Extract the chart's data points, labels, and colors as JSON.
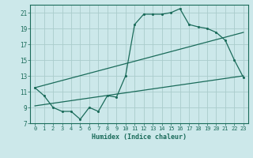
{
  "xlabel": "Humidex (Indice chaleur)",
  "bg_color": "#cce8ea",
  "grid_color": "#aacccc",
  "line_color": "#1a6b5a",
  "xlim": [
    -0.5,
    23.5
  ],
  "ylim": [
    7,
    22
  ],
  "xticks": [
    0,
    1,
    2,
    3,
    4,
    5,
    6,
    7,
    8,
    9,
    10,
    11,
    12,
    13,
    14,
    15,
    16,
    17,
    18,
    19,
    20,
    21,
    22,
    23
  ],
  "yticks": [
    7,
    9,
    11,
    13,
    15,
    17,
    19,
    21
  ],
  "line1_x": [
    0,
    1,
    2,
    3,
    4,
    5,
    6,
    7,
    8,
    9,
    10,
    11,
    12,
    13,
    14,
    15,
    16,
    17,
    18,
    19,
    20,
    21,
    22,
    23
  ],
  "line1_y": [
    11.5,
    10.5,
    9.0,
    8.5,
    8.5,
    7.5,
    9.0,
    8.5,
    10.5,
    10.3,
    13.0,
    19.5,
    20.8,
    20.8,
    20.8,
    21.0,
    21.5,
    19.5,
    19.2,
    19.0,
    18.5,
    17.5,
    15.0,
    12.8
  ],
  "line3_x": [
    0,
    23
  ],
  "line3_y": [
    9.2,
    13.0
  ],
  "line4_x": [
    0,
    23
  ],
  "line4_y": [
    11.5,
    18.5
  ]
}
